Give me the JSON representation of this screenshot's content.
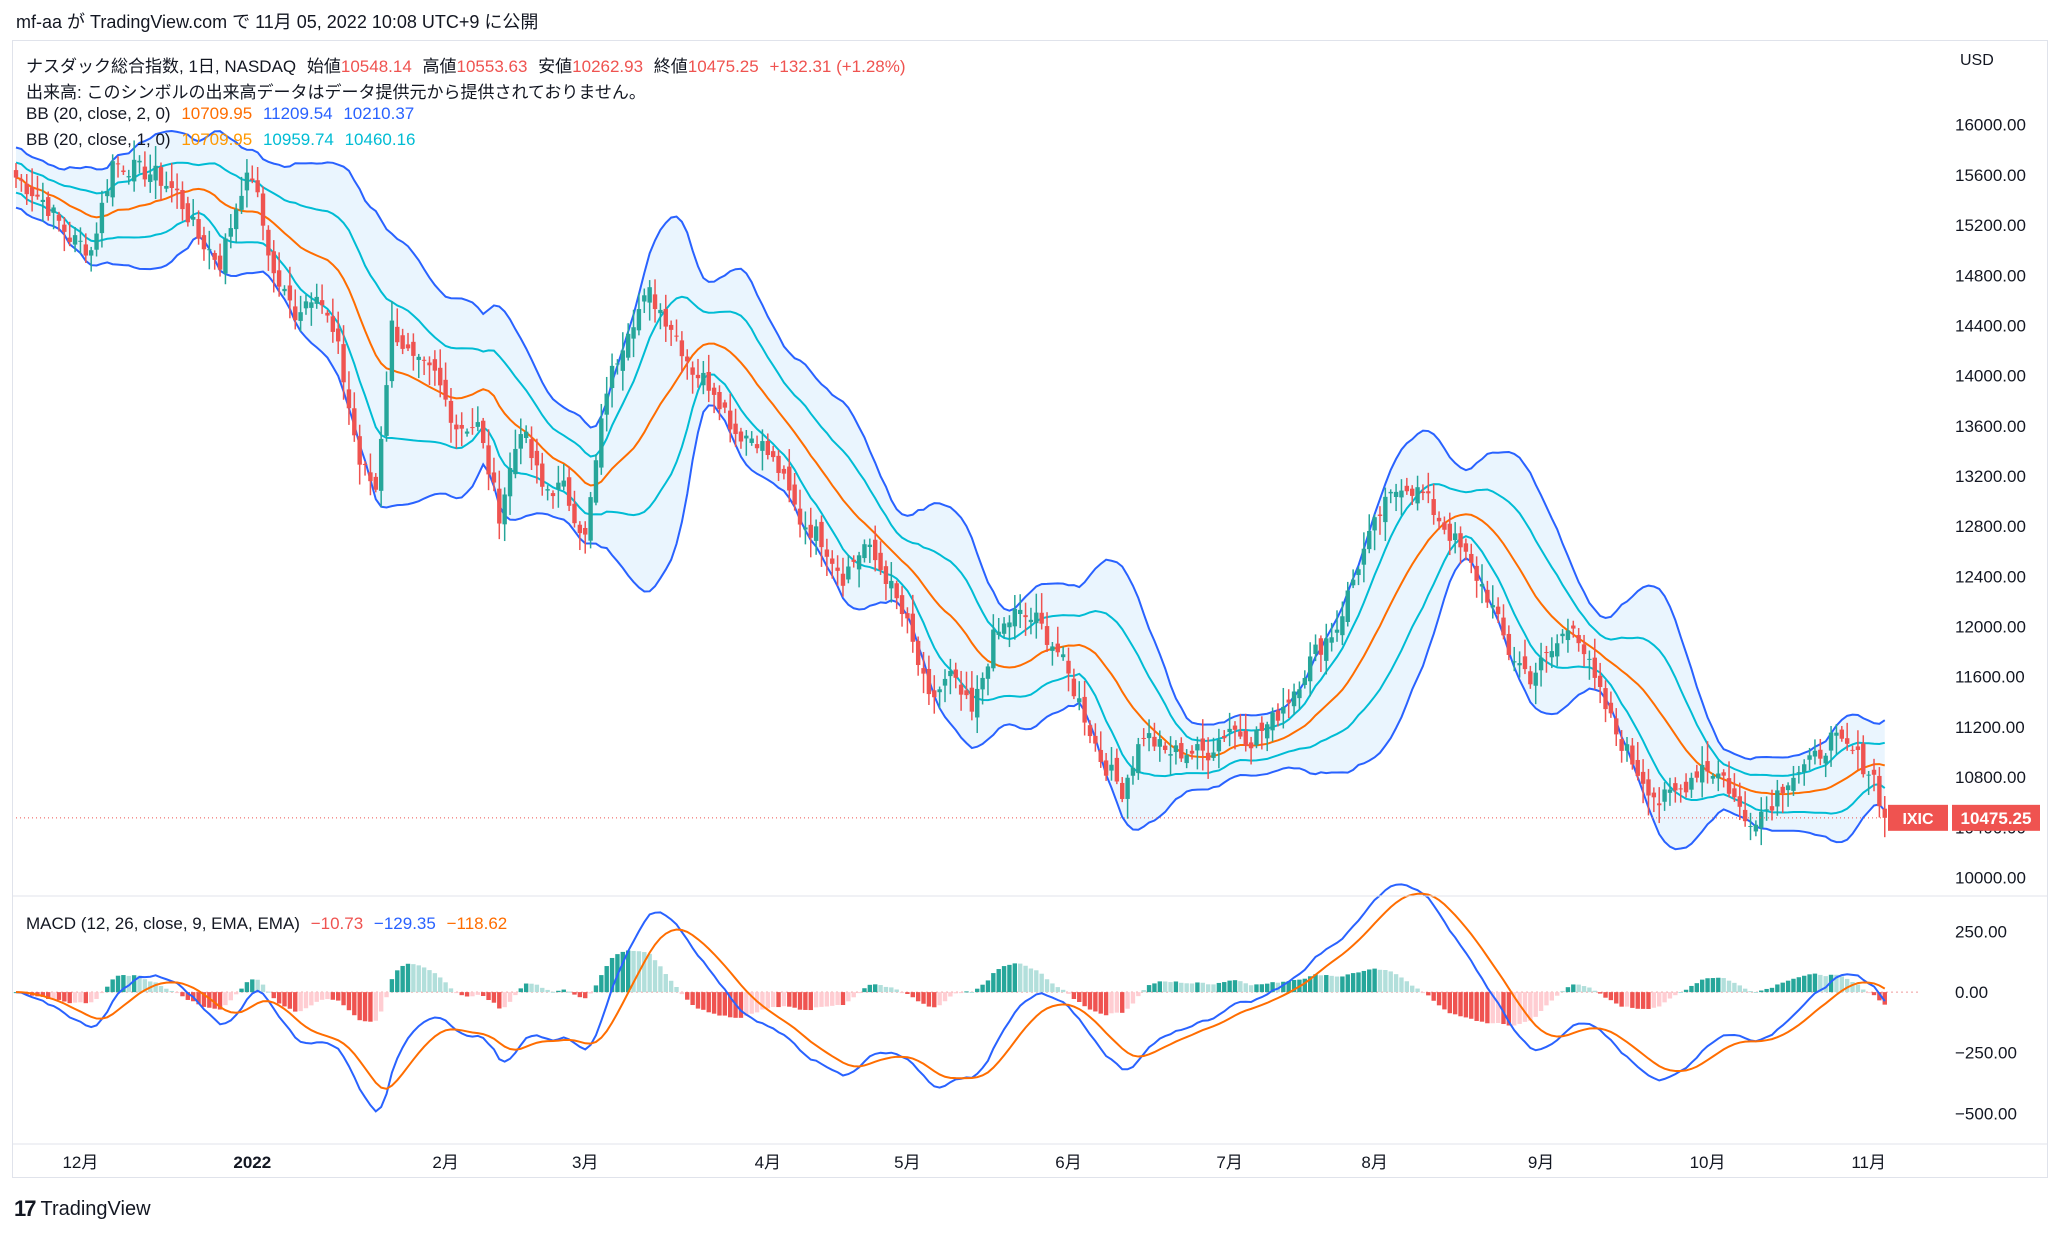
{
  "publish_line": "mf-aa が TradingView.com で 11月 05, 2022 10:08 UTC+9 に公開",
  "footer": {
    "logo": "17",
    "brand": "TradingView"
  },
  "legend": {
    "title": "ナスダック総合指数, 1日, NASDAQ",
    "open_label": "始値",
    "open": "10548.14",
    "high_label": "高値",
    "high": "10553.63",
    "low_label": "安値",
    "low": "10262.93",
    "close_label": "終値",
    "close": "10475.25",
    "change": "+132.31 (+1.28%)",
    "volume_note": "出来高: このシンボルの出来高データはデータ提供元から提供されておりません。",
    "bb1_label": "BB (20, close, 2, 0)",
    "bb1_basis": "10709.95",
    "bb1_upper": "11209.54",
    "bb1_lower": "10210.37",
    "bb2_label": "BB (20, close, 1, 0)",
    "bb2_basis": "10709.95",
    "bb2_upper": "10959.74",
    "bb2_lower": "10460.16",
    "macd_label": "MACD (12, 26, close, 9, EMA, EMA)",
    "macd_hist": "−10.73",
    "macd_line": "−129.35",
    "macd_signal": "−118.62"
  },
  "price_axis": {
    "currency": "USD",
    "ticks": [
      "16000.00",
      "15600.00",
      "15200.00",
      "14800.00",
      "14400.00",
      "14000.00",
      "13600.00",
      "13200.00",
      "12800.00",
      "12400.00",
      "12000.00",
      "11600.00",
      "11200.00",
      "10800.00",
      "10400.00",
      "10000.00"
    ]
  },
  "macd_axis": {
    "ticks": [
      "250.00",
      "0.00",
      "−250.00",
      "−500.00"
    ]
  },
  "time_axis": {
    "labels": [
      "12月",
      "2022",
      "2月",
      "3月",
      "4月",
      "5月",
      "6月",
      "7月",
      "8月",
      "9月",
      "10月",
      "11月"
    ]
  },
  "last_price_tag": {
    "symbol": "IXIC",
    "price": "10475.25"
  },
  "colors": {
    "up": "#26a69a",
    "down": "#ef5350",
    "bb_outer": "#2962ff",
    "bb_inner": "#00bcd4",
    "basis": "#ff6d00",
    "band_fill": "#e3f2fd",
    "macd_line": "#2962ff",
    "signal_line": "#ff6d00"
  },
  "chart_data": {
    "type": "candlestick",
    "title": "ナスダック総合指数, 1日, NASDAQ",
    "ylim": [
      9900,
      16500
    ],
    "macd_ylim": [
      -610,
      380
    ],
    "time_positions": [
      "12月",
      "2022",
      "2月",
      "3月",
      "4月",
      "5月",
      "6月",
      "7月",
      "8月",
      "9月",
      "10月",
      "11月"
    ],
    "time_index": [
      12,
      44,
      80,
      106,
      140,
      166,
      196,
      226,
      253,
      284,
      315,
      345
    ],
    "close_anchors": [
      [
        0,
        15580
      ],
      [
        5,
        15400
      ],
      [
        10,
        15100
      ],
      [
        14,
        15000
      ],
      [
        18,
        15700
      ],
      [
        22,
        15650
      ],
      [
        26,
        15600
      ],
      [
        30,
        15450
      ],
      [
        34,
        15100
      ],
      [
        38,
        14900
      ],
      [
        42,
        15500
      ],
      [
        44,
        15600
      ],
      [
        48,
        14800
      ],
      [
        52,
        14500
      ],
      [
        56,
        14700
      ],
      [
        60,
        14200
      ],
      [
        64,
        13300
      ],
      [
        67,
        13100
      ],
      [
        70,
        14400
      ],
      [
        74,
        14100
      ],
      [
        78,
        14000
      ],
      [
        82,
        13600
      ],
      [
        86,
        13600
      ],
      [
        90,
        12900
      ],
      [
        94,
        13600
      ],
      [
        98,
        13100
      ],
      [
        102,
        13100
      ],
      [
        106,
        12700
      ],
      [
        110,
        13900
      ],
      [
        114,
        14400
      ],
      [
        118,
        14650
      ],
      [
        122,
        14400
      ],
      [
        126,
        14050
      ],
      [
        130,
        13900
      ],
      [
        134,
        13550
      ],
      [
        138,
        13500
      ],
      [
        142,
        13250
      ],
      [
        146,
        12850
      ],
      [
        150,
        12700
      ],
      [
        154,
        12400
      ],
      [
        158,
        12650
      ],
      [
        162,
        12400
      ],
      [
        166,
        12000
      ],
      [
        170,
        11400
      ],
      [
        174,
        11600
      ],
      [
        178,
        11300
      ],
      [
        182,
        11900
      ],
      [
        186,
        12100
      ],
      [
        190,
        12050
      ],
      [
        194,
        11800
      ],
      [
        198,
        11400
      ],
      [
        202,
        10950
      ],
      [
        206,
        10700
      ],
      [
        210,
        11150
      ],
      [
        214,
        11000
      ],
      [
        218,
        11000
      ],
      [
        222,
        11000
      ],
      [
        226,
        11200
      ],
      [
        230,
        11100
      ],
      [
        234,
        11250
      ],
      [
        238,
        11500
      ],
      [
        242,
        11800
      ],
      [
        246,
        12000
      ],
      [
        250,
        12500
      ],
      [
        254,
        12900
      ],
      [
        258,
        13150
      ],
      [
        262,
        13050
      ],
      [
        266,
        12800
      ],
      [
        270,
        12550
      ],
      [
        274,
        12250
      ],
      [
        278,
        11800
      ],
      [
        282,
        11600
      ],
      [
        286,
        11800
      ],
      [
        290,
        12050
      ],
      [
        294,
        11550
      ],
      [
        298,
        11150
      ],
      [
        302,
        10850
      ],
      [
        306,
        10600
      ],
      [
        310,
        10700
      ],
      [
        314,
        10900
      ],
      [
        318,
        10800
      ],
      [
        322,
        10450
      ],
      [
        326,
        10550
      ],
      [
        330,
        10800
      ],
      [
        334,
        10900
      ],
      [
        338,
        11100
      ],
      [
        342,
        11000
      ],
      [
        346,
        10800
      ],
      [
        348,
        10475
      ]
    ],
    "price_series": {
      "last_close": 10475.25,
      "open": 10548.14,
      "high": 10553.63,
      "low": 10262.93
    },
    "bollinger": {
      "period": 20,
      "outer_mult": 2,
      "inner_mult": 1
    },
    "macd": {
      "fast": 12,
      "slow": 26,
      "signal": 9
    }
  }
}
